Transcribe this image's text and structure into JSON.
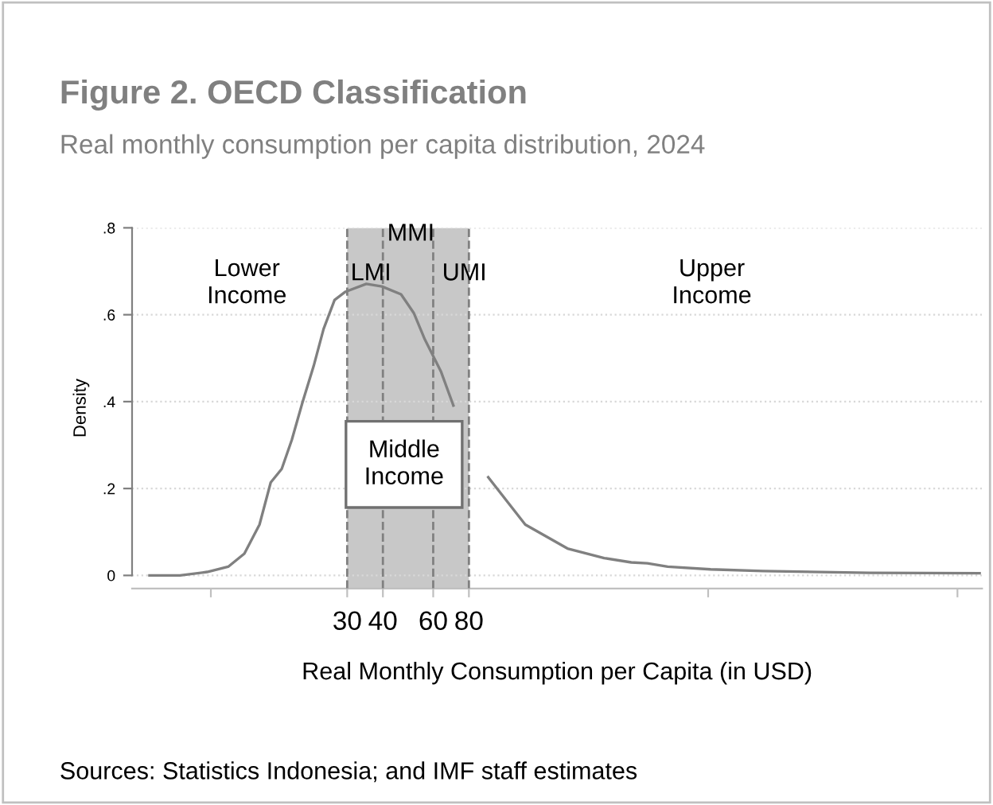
{
  "chart_data": {
    "type": "line",
    "title": "Figure 2. OECD Classification",
    "subtitle": "Real monthly consumption per capita distribution, 2024",
    "xlabel": "Real Monthly Consumption per Capita (in USD)",
    "ylabel": "Density",
    "log": "x",
    "x": [
      6.1,
      7.8,
      9.7,
      11.5,
      13.1,
      14.8,
      16.2,
      17.7,
      19.2,
      20.9,
      22.9,
      24.8,
      27.1,
      29.6,
      35.0,
      39.7,
      46.3,
      51.3,
      56.1,
      63.8,
      70.6,
      81,
      93.5,
      126,
      177,
      238,
      296,
      337,
      397,
      561,
      857,
      2020,
      4900
    ],
    "series": [
      {
        "color": "#808080",
        "values": [
          0,
          0,
          0.008,
          0.02,
          0.05,
          0.117,
          0.214,
          0.245,
          0.312,
          0.397,
          0.482,
          0.567,
          0.634,
          0.653,
          0.671,
          0.665,
          0.647,
          0.604,
          0.543,
          0.47,
          0.391,
          null,
          0.226,
          0.117,
          0.062,
          0.04,
          0.03,
          0.028,
          0.02,
          0.014,
          0.01,
          0.006,
          0.005
        ]
      }
    ],
    "xlim": [
      5.3,
      5000
    ],
    "xticks": [
      {
        "value": 10,
        "label": null
      },
      30,
      40,
      60,
      80,
      {
        "value": 550,
        "label": null
      },
      {
        "value": 4100,
        "label": null
      }
    ],
    "ylim": [
      -0.03,
      0.8
    ],
    "yticks": [
      {
        "value": 0,
        "label": "0"
      },
      {
        "value": 0.2,
        "label": ".2"
      },
      {
        "value": 0.4,
        "label": ".4"
      },
      {
        "value": 0.6,
        "label": ".6"
      },
      {
        "value": 0.8,
        "label": ".8"
      }
    ],
    "grid": "y",
    "bands": [
      {
        "axis": "x",
        "from": 30,
        "to": 80,
        "label": null,
        "color": "#c8c8c8"
      }
    ],
    "ref_lines": [
      {
        "axis": "x",
        "value": 30,
        "label": null,
        "color": "#808080",
        "line_style": "dashed"
      },
      {
        "axis": "x",
        "value": 40,
        "label": null,
        "color": "#808080",
        "line_style": "dashed"
      },
      {
        "axis": "x",
        "value": 60,
        "label": null,
        "color": "#808080",
        "line_style": "dashed"
      },
      {
        "axis": "x",
        "value": 80,
        "label": null,
        "color": "#808080",
        "line_style": "dashed"
      }
    ],
    "annotations": [
      "Lower\nIncome",
      "LMI",
      "MMI",
      "UMI",
      "Upper\nIncome",
      "Middle\nIncome",
      "Sources: Statistics Indonesia; and IMF staff estimates"
    ]
  }
}
